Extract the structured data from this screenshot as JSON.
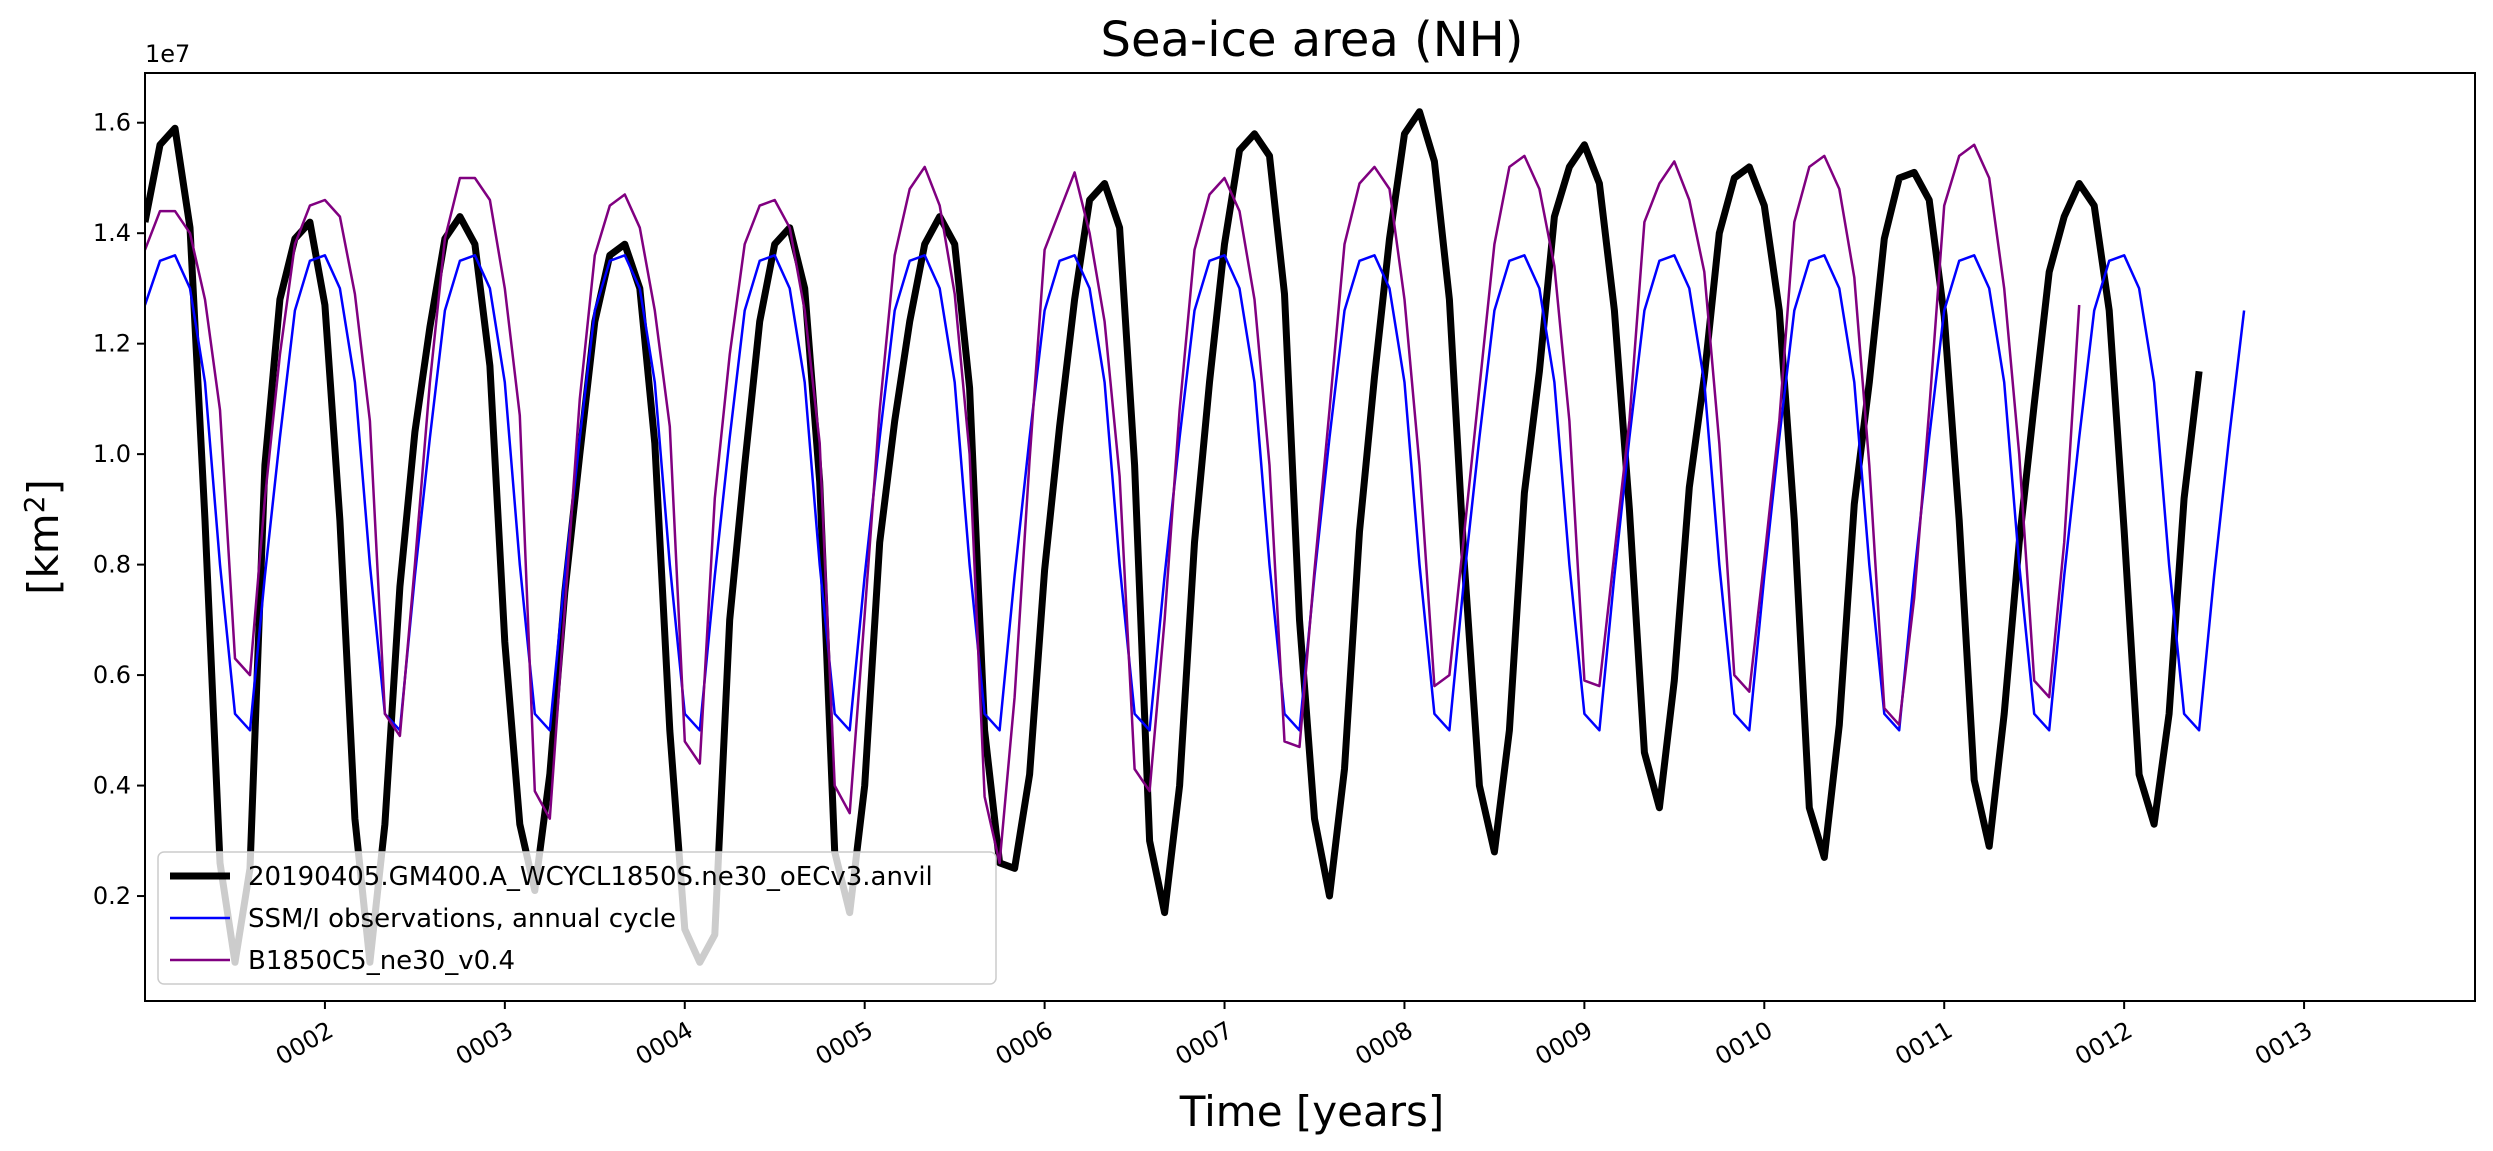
{
  "chart_data": {
    "type": "line",
    "title": "Sea-ice area (NH)",
    "xlabel": "Time [years]",
    "ylabel_base": "[km",
    "ylabel_sup": "2",
    "ylabel_close": "]",
    "y_offset_label": "1e7",
    "xlim": [
      1.0,
      13.95
    ],
    "ylim": [
      0.01,
      1.69
    ],
    "x_ticks": [
      2,
      3,
      4,
      5,
      6,
      7,
      8,
      9,
      10,
      11,
      12,
      13
    ],
    "x_tick_labels": [
      "0002",
      "0003",
      "0004",
      "0005",
      "0006",
      "0007",
      "0008",
      "0009",
      "0010",
      "0011",
      "0012",
      "0013"
    ],
    "y_ticks": [
      0.2,
      0.4,
      0.6,
      0.8,
      1.0,
      1.2,
      1.4,
      1.6
    ],
    "y_tick_labels": [
      "0.2",
      "0.4",
      "0.6",
      "0.8",
      "1.0",
      "1.2",
      "1.4",
      "1.6"
    ],
    "legend_position": "lower-left",
    "series": [
      {
        "name": "20190405.GM400.A_WCYCL1850S.ne30_oECv3.anvil",
        "color": "#000000",
        "linewidth": 7,
        "values": [
          1.42,
          1.56,
          1.59,
          1.41,
          0.88,
          0.26,
          0.08,
          0.25,
          0.98,
          1.28,
          1.39,
          1.42,
          1.27,
          0.88,
          0.34,
          0.08,
          0.33,
          0.76,
          1.04,
          1.23,
          1.39,
          1.43,
          1.38,
          1.16,
          0.66,
          0.33,
          0.21,
          0.42,
          0.75,
          1.0,
          1.24,
          1.36,
          1.38,
          1.3,
          1.02,
          0.5,
          0.14,
          0.08,
          0.13,
          0.7,
          0.98,
          1.24,
          1.38,
          1.41,
          1.3,
          0.95,
          0.28,
          0.17,
          0.4,
          0.84,
          1.06,
          1.24,
          1.38,
          1.43,
          1.38,
          1.12,
          0.5,
          0.26,
          0.25,
          0.42,
          0.79,
          1.05,
          1.28,
          1.46,
          1.49,
          1.41,
          0.98,
          0.3,
          0.17,
          0.4,
          0.84,
          1.13,
          1.38,
          1.55,
          1.58,
          1.54,
          1.29,
          0.7,
          0.34,
          0.2,
          0.43,
          0.86,
          1.14,
          1.39,
          1.58,
          1.62,
          1.53,
          1.28,
          0.8,
          0.4,
          0.28,
          0.5,
          0.93,
          1.15,
          1.43,
          1.52,
          1.56,
          1.49,
          1.26,
          0.9,
          0.46,
          0.36,
          0.59,
          0.94,
          1.14,
          1.4,
          1.5,
          1.52,
          1.45,
          1.26,
          0.88,
          0.36,
          0.27,
          0.51,
          0.91,
          1.13,
          1.39,
          1.5,
          1.51,
          1.46,
          1.25,
          0.88,
          0.41,
          0.29,
          0.53,
          0.84,
          1.09,
          1.33,
          1.43,
          1.49,
          1.45,
          1.26,
          0.86,
          0.42,
          0.33,
          0.53,
          0.92,
          1.15
        ]
      },
      {
        "name": "SSM/I observations, annual cycle",
        "color": "#0000ff",
        "linewidth": 2.5,
        "values": [
          1.27,
          1.35,
          1.36,
          1.3,
          1.13,
          0.8,
          0.53,
          0.5,
          0.78,
          1.03,
          1.26,
          1.35,
          1.36,
          1.3,
          1.13,
          0.8,
          0.53,
          0.5,
          0.78,
          1.03,
          1.26,
          1.35,
          1.36,
          1.3,
          1.13,
          0.8,
          0.53,
          0.5,
          0.78,
          1.03,
          1.26,
          1.35,
          1.36,
          1.3,
          1.13,
          0.8,
          0.53,
          0.5,
          0.78,
          1.03,
          1.26,
          1.35,
          1.36,
          1.3,
          1.13,
          0.8,
          0.53,
          0.5,
          0.78,
          1.03,
          1.26,
          1.35,
          1.36,
          1.3,
          1.13,
          0.8,
          0.53,
          0.5,
          0.78,
          1.03,
          1.26,
          1.35,
          1.36,
          1.3,
          1.13,
          0.8,
          0.53,
          0.5,
          0.78,
          1.03,
          1.26,
          1.35,
          1.36,
          1.3,
          1.13,
          0.8,
          0.53,
          0.5,
          0.78,
          1.03,
          1.26,
          1.35,
          1.36,
          1.3,
          1.13,
          0.8,
          0.53,
          0.5,
          0.78,
          1.03,
          1.26,
          1.35,
          1.36,
          1.3,
          1.13,
          0.8,
          0.53,
          0.5,
          0.78,
          1.03,
          1.26,
          1.35,
          1.36,
          1.3,
          1.13,
          0.8,
          0.53,
          0.5,
          0.78,
          1.03,
          1.26,
          1.35,
          1.36,
          1.3,
          1.13,
          0.8,
          0.53,
          0.5,
          0.78,
          1.03,
          1.26,
          1.35,
          1.36,
          1.3,
          1.13,
          0.8,
          0.53,
          0.5,
          0.78,
          1.03,
          1.26,
          1.35,
          1.36,
          1.3,
          1.13,
          0.8,
          0.53,
          0.5,
          0.78,
          1.03,
          1.26
        ]
      },
      {
        "name": "B1850C5_ne30_v0.4",
        "color": "#800080",
        "linewidth": 2.5,
        "values": [
          1.37,
          1.44,
          1.44,
          1.4,
          1.28,
          1.08,
          0.63,
          0.6,
          0.92,
          1.18,
          1.38,
          1.45,
          1.46,
          1.43,
          1.29,
          1.06,
          0.53,
          0.49,
          0.8,
          1.13,
          1.39,
          1.5,
          1.5,
          1.46,
          1.3,
          1.07,
          0.39,
          0.34,
          0.72,
          1.1,
          1.36,
          1.45,
          1.47,
          1.41,
          1.26,
          1.05,
          0.48,
          0.44,
          0.92,
          1.18,
          1.38,
          1.45,
          1.46,
          1.41,
          1.26,
          1.02,
          0.4,
          0.35,
          0.71,
          1.08,
          1.36,
          1.48,
          1.52,
          1.45,
          1.29,
          1.0,
          0.38,
          0.26,
          0.56,
          0.99,
          1.37,
          1.44,
          1.51,
          1.4,
          1.24,
          0.96,
          0.43,
          0.39,
          0.7,
          1.08,
          1.37,
          1.47,
          1.5,
          1.44,
          1.28,
          0.98,
          0.48,
          0.47,
          0.79,
          1.08,
          1.38,
          1.49,
          1.52,
          1.48,
          1.28,
          0.98,
          0.58,
          0.6,
          0.86,
          1.12,
          1.38,
          1.52,
          1.54,
          1.48,
          1.34,
          1.06,
          0.59,
          0.58,
          0.82,
          1.06,
          1.42,
          1.49,
          1.53,
          1.46,
          1.33,
          1.02,
          0.6,
          0.57,
          0.81,
          1.06,
          1.42,
          1.52,
          1.54,
          1.48,
          1.32,
          0.98,
          0.54,
          0.51,
          0.74,
          1.08,
          1.45,
          1.54,
          1.56,
          1.5,
          1.3,
          1.0,
          0.59,
          0.56,
          0.84,
          1.27
        ]
      }
    ]
  }
}
